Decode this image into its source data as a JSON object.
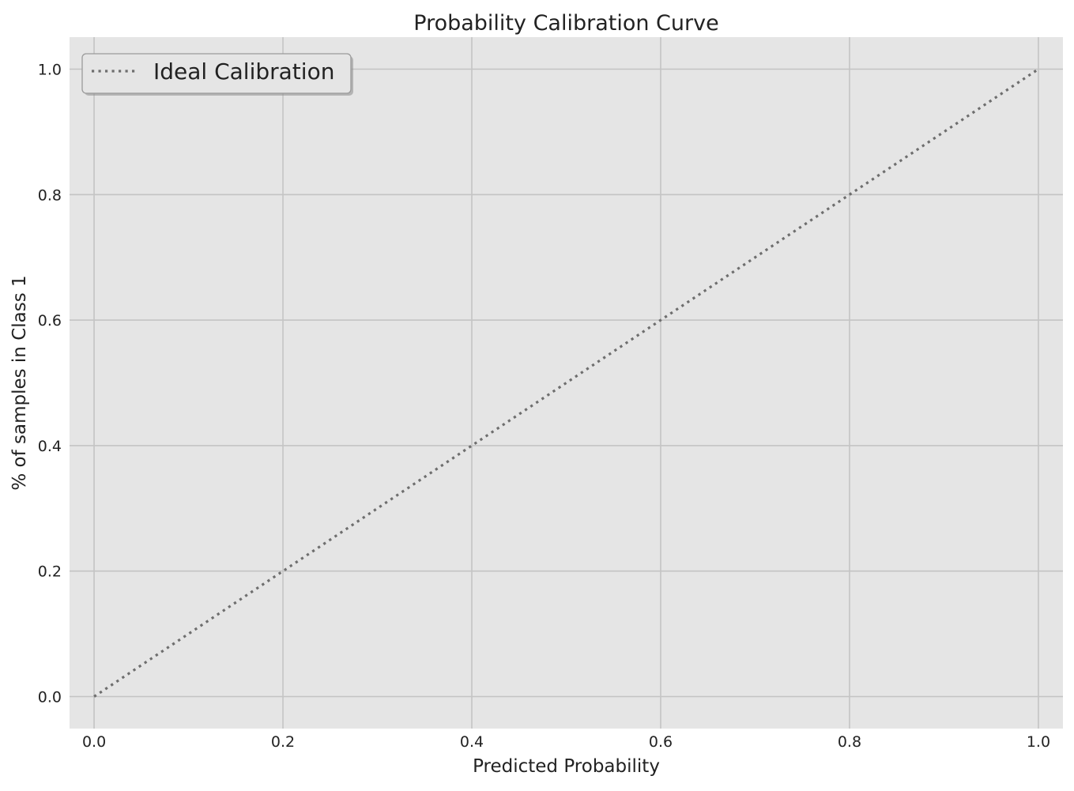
{
  "colors": {
    "plot_background": "#e5e5e5",
    "grid": "#c4c4c4",
    "ideal_line": "#6e6e6e",
    "legend_background": "#e5e5e5",
    "legend_border": "#9a9a9a"
  },
  "chart_data": {
    "type": "line",
    "title": "Probability Calibration Curve",
    "xlabel": "Predicted Probability",
    "ylabel": "% of samples in Class 1",
    "xlim": [
      -0.026,
      1.026
    ],
    "ylim": [
      -0.051,
      1.051
    ],
    "xticks": [
      0.0,
      0.2,
      0.4,
      0.6,
      0.8,
      1.0
    ],
    "xtick_labels": [
      "0.0",
      "0.2",
      "0.4",
      "0.6",
      "0.8",
      "1.0"
    ],
    "yticks": [
      0.0,
      0.2,
      0.4,
      0.6,
      0.8,
      1.0
    ],
    "ytick_labels": [
      "0.0",
      "0.2",
      "0.4",
      "0.6",
      "0.8",
      "1.0"
    ],
    "grid": true,
    "legend_position": "top-left",
    "series": [
      {
        "name": "Ideal Calibration",
        "line_style": "dotted",
        "x": [
          0.0,
          1.0
        ],
        "y": [
          0.0,
          1.0
        ]
      }
    ]
  }
}
